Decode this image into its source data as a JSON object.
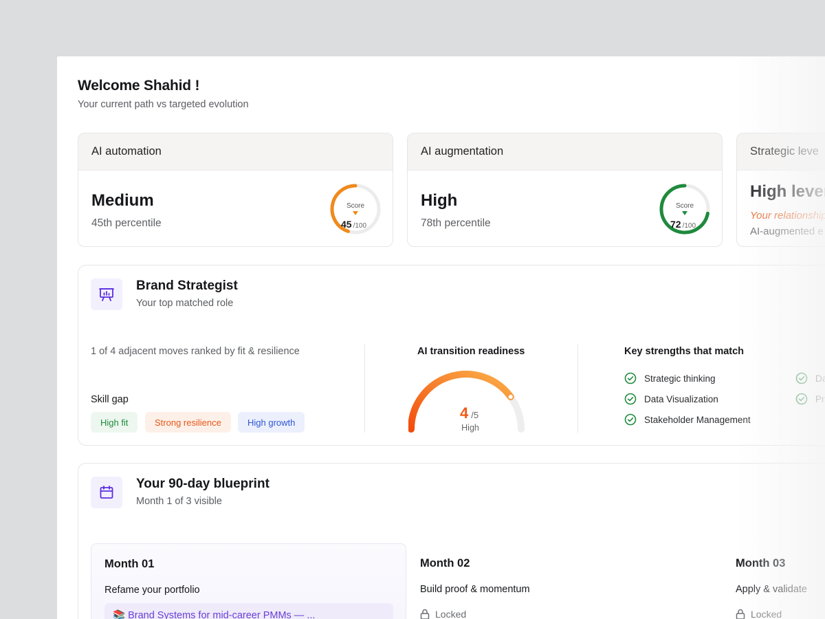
{
  "header": {
    "welcome": "Welcome Shahid !",
    "subtitle": "Your current path vs targeted evolution"
  },
  "score_cards": [
    {
      "title": "AI automation",
      "level": "Medium",
      "percentile": "45th percentile",
      "score_label": "Score",
      "score": "45",
      "score_max": "/100",
      "score_value": 45,
      "color": "#f08a1c"
    },
    {
      "title": "AI augmentation",
      "level": "High",
      "percentile": "78th percentile",
      "score_label": "Score",
      "score": "72",
      "score_max": "/100",
      "score_value": 72,
      "color": "#1f8a3c"
    },
    {
      "title": "Strategic leve",
      "level": "High levera",
      "italic_note": "Your relationship",
      "note": "AI-augmented e"
    }
  ],
  "role": {
    "title": "Brand Strategist",
    "subtitle": "Your top matched role",
    "adjacent": "1 of 4 adjacent moves ranked by fit & resilience",
    "skill_gap_label": "Skill gap",
    "tags": [
      "High fit",
      "Strong resilience",
      "High growth"
    ],
    "readiness": {
      "title": "AI transition readiness",
      "value": "4",
      "max": "/5",
      "level": "High",
      "fraction": 0.8
    },
    "strengths_title": "Key strengths that match",
    "strengths": [
      "Strategic thinking",
      "Data Visualization",
      "Stakeholder Management",
      "Da",
      "Pro"
    ]
  },
  "blueprint": {
    "title": "Your 90-day blueprint",
    "subtitle": "Month 1 of 3 visible",
    "months": [
      {
        "title": "Month 01",
        "subtitle": "Refame your portfolio",
        "course": "📚 Brand Systems for mid-career PMMs — ..."
      },
      {
        "title": "Month 02",
        "subtitle": "Build proof & momentum",
        "status": "Locked"
      },
      {
        "title": "Month 03",
        "subtitle": "Apply & validate",
        "status": "Locked"
      }
    ]
  },
  "colors": {
    "accent": "#5b2ee0",
    "orange": "#f05a14",
    "green": "#1f8a3c",
    "blue": "#2f56d6"
  },
  "icons": [
    "presentation-chart-icon",
    "calendar-icon",
    "check-circle-icon",
    "lock-icon",
    "score-gauge-arrow-icon"
  ]
}
